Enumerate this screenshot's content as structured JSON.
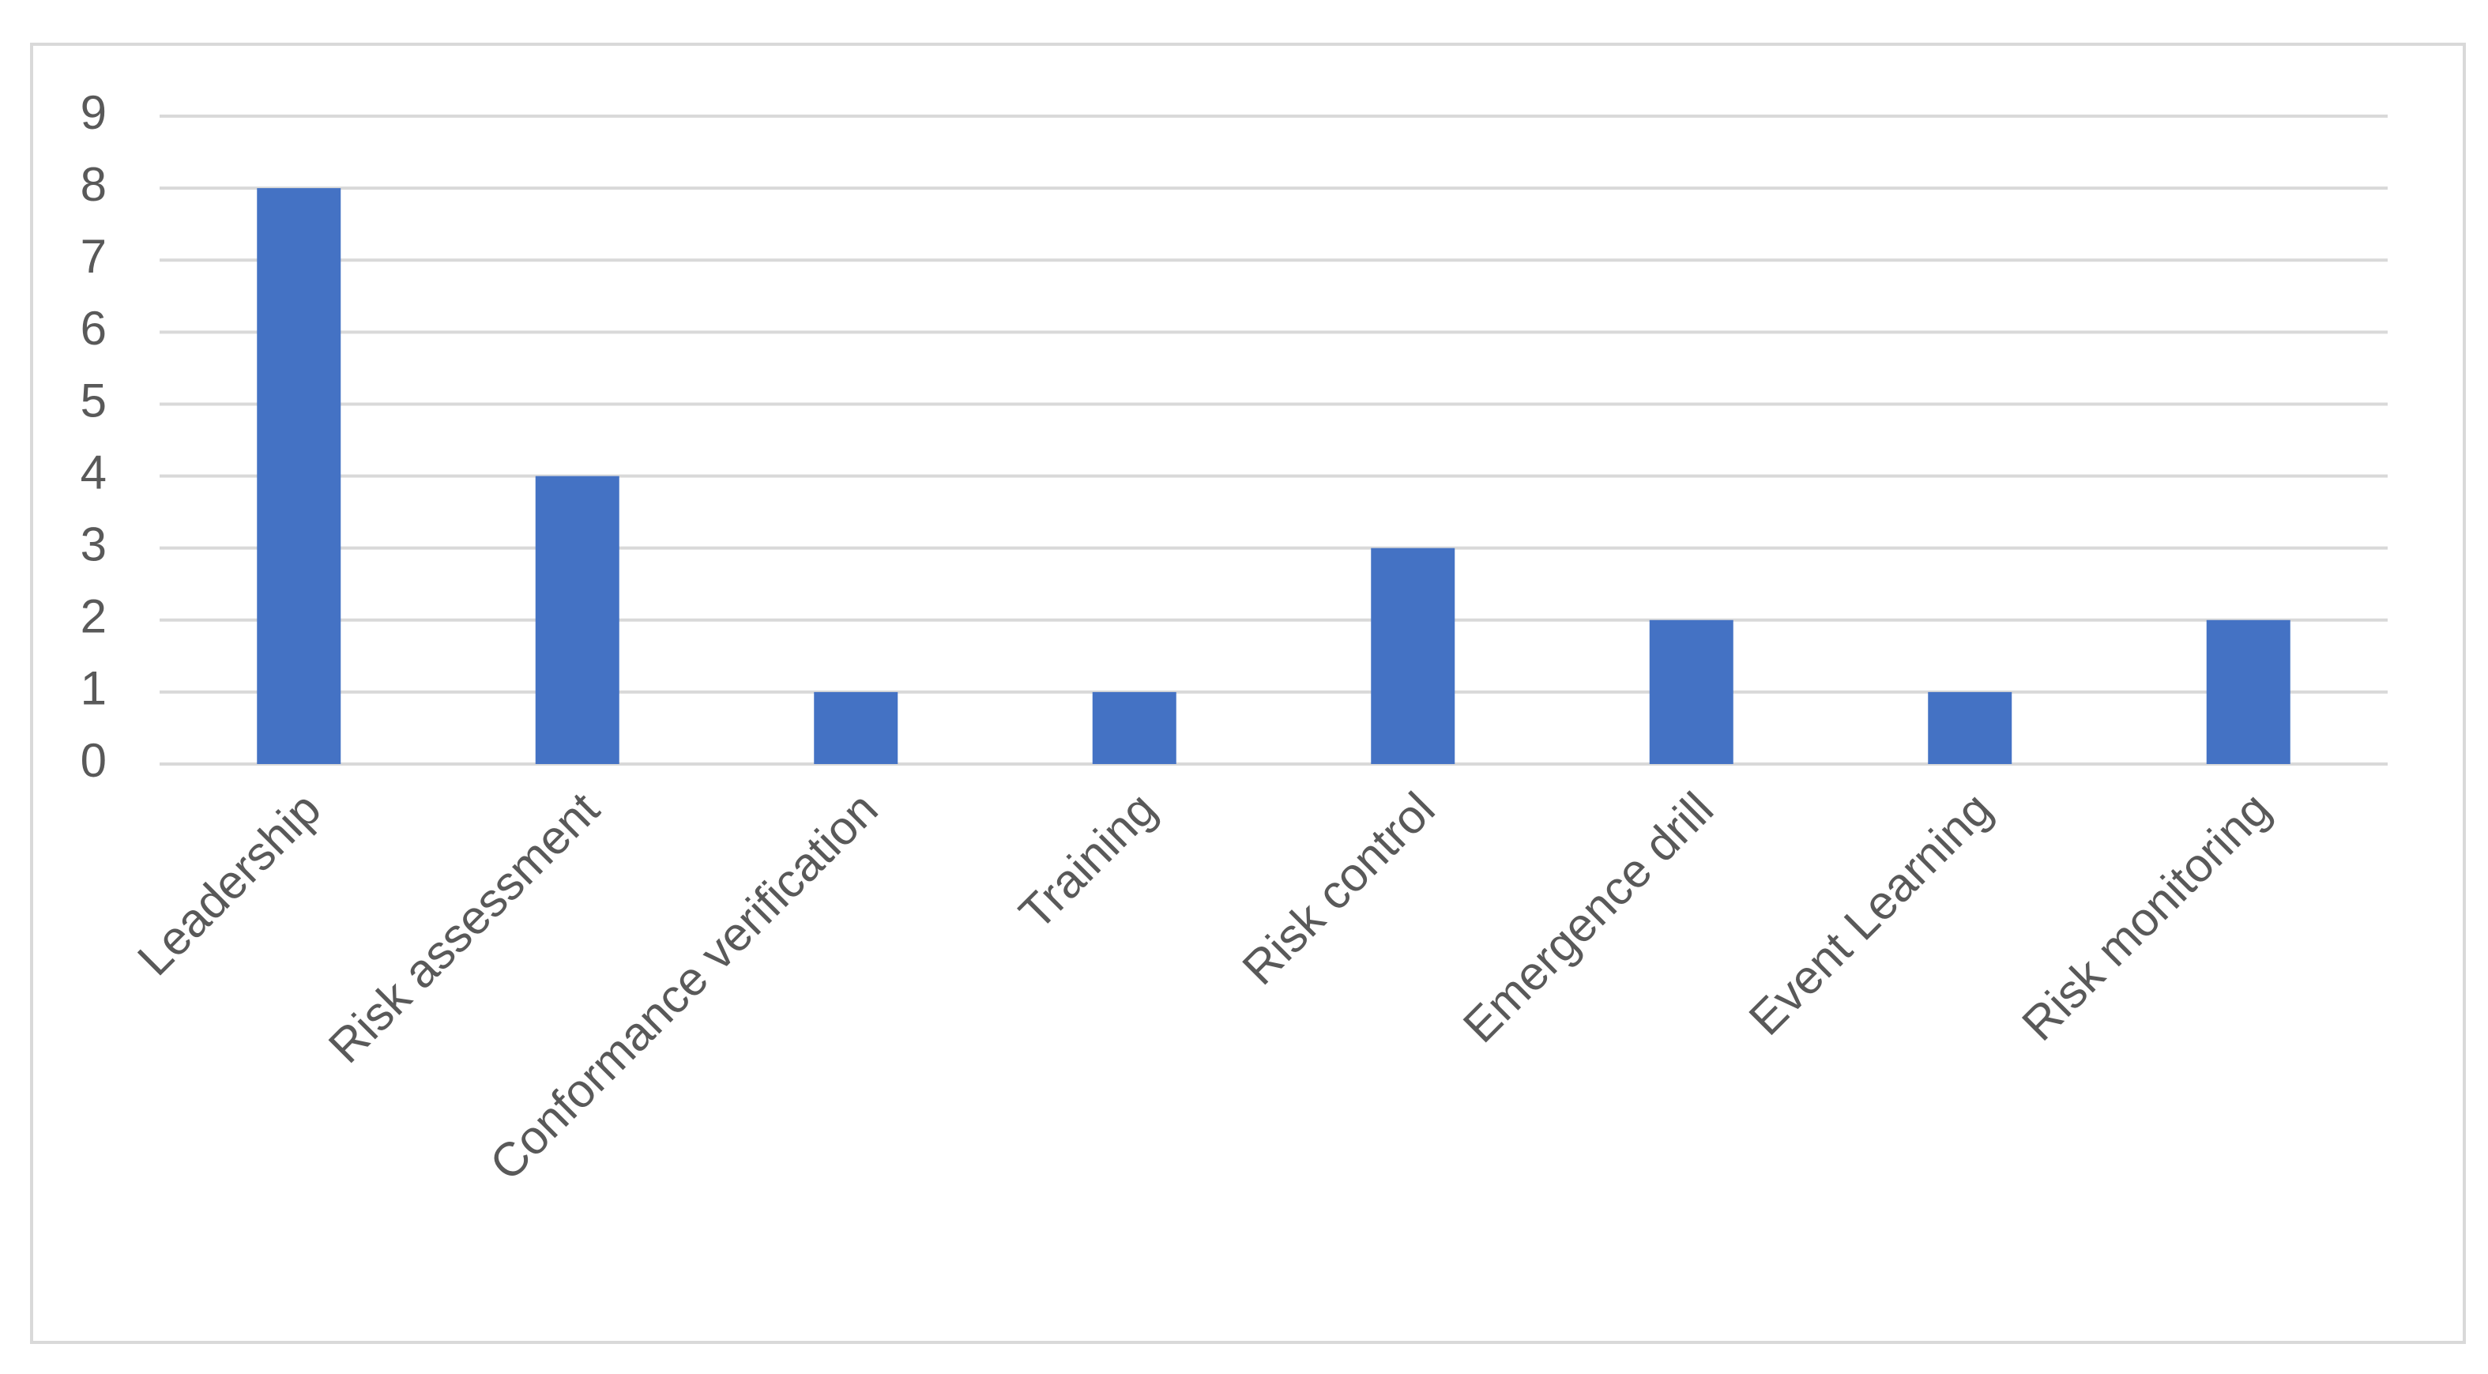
{
  "chart_data": {
    "type": "bar",
    "categories": [
      "Leadership",
      "Risk assessment",
      "Conformance verification",
      "Training",
      "Risk control",
      "Emergence drill",
      "Event Learning",
      "Risk monitoring"
    ],
    "values": [
      8,
      4,
      1,
      1,
      3,
      2,
      1,
      2
    ],
    "color": "#4472c4",
    "ylim": [
      0,
      9
    ],
    "yticks": [
      0,
      1,
      2,
      3,
      4,
      5,
      6,
      7,
      8,
      9
    ],
    "grid": true
  }
}
